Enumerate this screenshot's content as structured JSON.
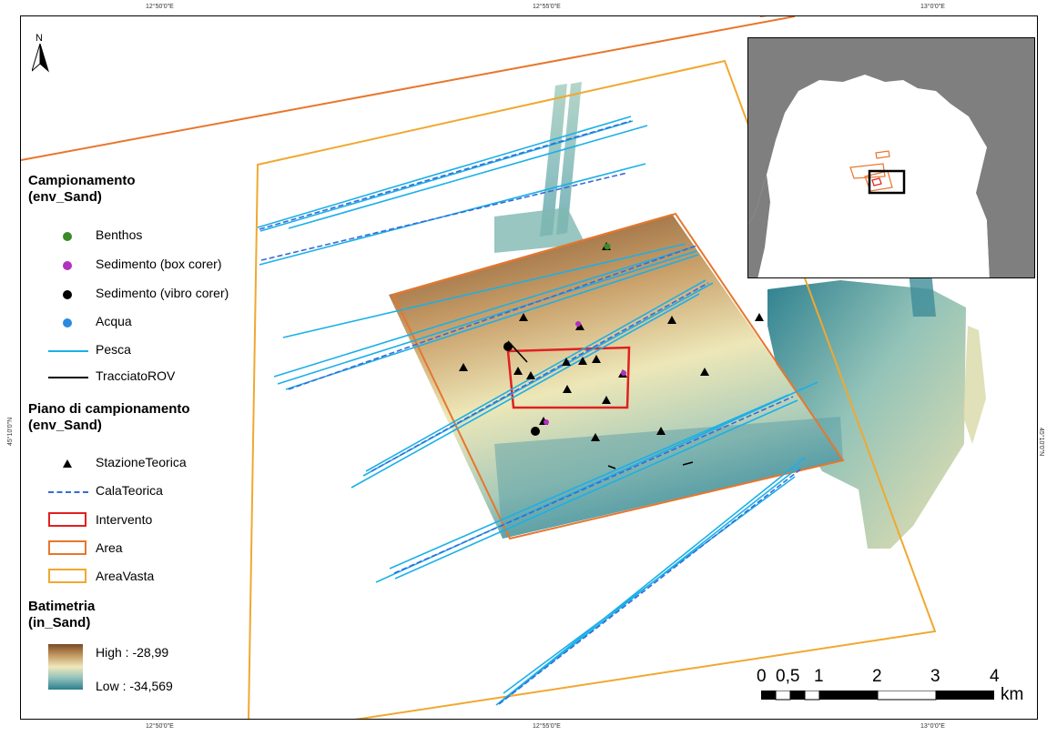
{
  "coordinates": {
    "top": [
      "12°50'0\"E",
      "12°55'0\"E",
      "13°0'0\"E"
    ],
    "bottom": [
      "12°50'0\"E",
      "12°55'0\"E",
      "13°0'0\"E"
    ],
    "left": [
      "45°10'0\"N"
    ],
    "right": [
      "45°10'0\"N"
    ]
  },
  "north_arrow": {
    "label": "N"
  },
  "legend": {
    "campionamento_title": "Campionamento\n(env_Sand)",
    "campionamento_items": [
      {
        "label": "Benthos",
        "color": "#3a8a2a"
      },
      {
        "label": "Sedimento (box corer)",
        "color": "#b030c0"
      },
      {
        "label": "Sedimento (vibro corer)",
        "color": "#000000"
      },
      {
        "label": "Acqua",
        "color": "#2a8ae0"
      },
      {
        "label": "Pesca",
        "color": "#1ab0e8"
      },
      {
        "label": "TracciatoROV",
        "color": "#000000"
      }
    ],
    "piano_title": "Piano di campionamento\n(env_Sand)",
    "piano_items": [
      {
        "label": "StazioneTeorica",
        "color": "#000000"
      },
      {
        "label": "CalaTeorica",
        "color": "#3a6ad8"
      },
      {
        "label": "Intervento",
        "color": "#e02020"
      },
      {
        "label": "Area",
        "color": "#e8762c"
      },
      {
        "label": "AreaVasta",
        "color": "#f0a830"
      }
    ],
    "batimetria_title": "Batimetria\n(in_Sand)",
    "high_label": "High : -28,99",
    "low_label": "Low : -34,569"
  },
  "scale_bar": {
    "labels": [
      "0",
      "0,5",
      "1",
      "2",
      "3",
      "4"
    ],
    "unit": "km"
  }
}
